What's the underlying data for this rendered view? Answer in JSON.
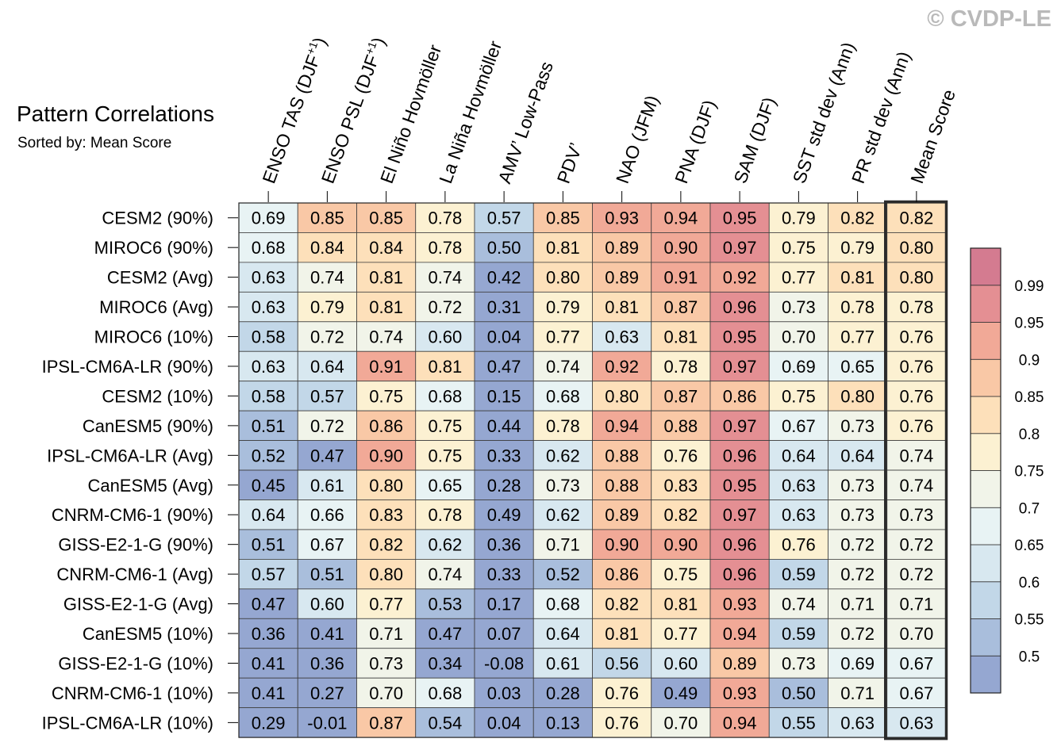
{
  "watermark": "© CVDP-LE",
  "title": "Pattern Correlations",
  "subtitle": "Sorted by: Mean Score",
  "chart_data": {
    "type": "heatmap",
    "columns": [
      {
        "label": "ENSO TAS (DJF",
        "sup": "+1",
        "tail": ")"
      },
      {
        "label": "ENSO PSL (DJF",
        "sup": "+1",
        "tail": ")"
      },
      {
        "label": "El Niño Hovmöller",
        "sup": "",
        "tail": ""
      },
      {
        "label": "La Niña Hovmöller",
        "sup": "",
        "tail": ""
      },
      {
        "label": "AMV’ Low-Pass",
        "sup": "",
        "tail": ""
      },
      {
        "label": "PDV’",
        "sup": "",
        "tail": ""
      },
      {
        "label": "NAO (JFM)",
        "sup": "",
        "tail": ""
      },
      {
        "label": "PNA (DJF)",
        "sup": "",
        "tail": ""
      },
      {
        "label": "SAM (DJF)",
        "sup": "",
        "tail": ""
      },
      {
        "label": "SST std dev (Ann)",
        "sup": "",
        "tail": ""
      },
      {
        "label": "PR std dev (Ann)",
        "sup": "",
        "tail": ""
      },
      {
        "label": "Mean Score",
        "sup": "",
        "tail": ""
      }
    ],
    "rows": [
      "CESM2 (90%)",
      "MIROC6 (90%)",
      "CESM2 (Avg)",
      "MIROC6 (Avg)",
      "MIROC6 (10%)",
      "IPSL-CM6A-LR (90%)",
      "CESM2 (10%)",
      "CanESM5 (90%)",
      "IPSL-CM6A-LR (Avg)",
      "CanESM5 (Avg)",
      "CNRM-CM6-1 (90%)",
      "GISS-E2-1-G (90%)",
      "CNRM-CM6-1 (Avg)",
      "GISS-E2-1-G (Avg)",
      "CanESM5 (10%)",
      "GISS-E2-1-G (10%)",
      "CNRM-CM6-1 (10%)",
      "IPSL-CM6A-LR (10%)"
    ],
    "values": [
      [
        "0.69",
        "0.85",
        "0.85",
        "0.78",
        "0.57",
        "0.85",
        "0.93",
        "0.94",
        "0.95",
        "0.79",
        "0.82",
        "0.82"
      ],
      [
        "0.68",
        "0.84",
        "0.84",
        "0.78",
        "0.50",
        "0.81",
        "0.89",
        "0.90",
        "0.97",
        "0.75",
        "0.79",
        "0.80"
      ],
      [
        "0.63",
        "0.74",
        "0.81",
        "0.74",
        "0.42",
        "0.80",
        "0.89",
        "0.91",
        "0.92",
        "0.77",
        "0.81",
        "0.80"
      ],
      [
        "0.63",
        "0.79",
        "0.81",
        "0.72",
        "0.31",
        "0.79",
        "0.81",
        "0.87",
        "0.96",
        "0.73",
        "0.78",
        "0.78"
      ],
      [
        "0.58",
        "0.72",
        "0.74",
        "0.60",
        "0.04",
        "0.77",
        "0.63",
        "0.81",
        "0.95",
        "0.70",
        "0.77",
        "0.76"
      ],
      [
        "0.63",
        "0.64",
        "0.91",
        "0.81",
        "0.47",
        "0.74",
        "0.92",
        "0.78",
        "0.97",
        "0.69",
        "0.65",
        "0.76"
      ],
      [
        "0.58",
        "0.57",
        "0.75",
        "0.68",
        "0.15",
        "0.68",
        "0.80",
        "0.87",
        "0.86",
        "0.75",
        "0.80",
        "0.76"
      ],
      [
        "0.51",
        "0.72",
        "0.86",
        "0.75",
        "0.44",
        "0.78",
        "0.94",
        "0.88",
        "0.97",
        "0.67",
        "0.73",
        "0.76"
      ],
      [
        "0.52",
        "0.47",
        "0.90",
        "0.75",
        "0.33",
        "0.62",
        "0.88",
        "0.76",
        "0.96",
        "0.64",
        "0.64",
        "0.74"
      ],
      [
        "0.45",
        "0.61",
        "0.80",
        "0.65",
        "0.28",
        "0.73",
        "0.88",
        "0.83",
        "0.95",
        "0.63",
        "0.73",
        "0.74"
      ],
      [
        "0.64",
        "0.66",
        "0.83",
        "0.78",
        "0.49",
        "0.62",
        "0.89",
        "0.82",
        "0.97",
        "0.63",
        "0.73",
        "0.73"
      ],
      [
        "0.51",
        "0.67",
        "0.82",
        "0.62",
        "0.36",
        "0.71",
        "0.90",
        "0.90",
        "0.96",
        "0.76",
        "0.72",
        "0.72"
      ],
      [
        "0.57",
        "0.51",
        "0.80",
        "0.74",
        "0.33",
        "0.52",
        "0.86",
        "0.75",
        "0.96",
        "0.59",
        "0.72",
        "0.72"
      ],
      [
        "0.47",
        "0.60",
        "0.77",
        "0.53",
        "0.17",
        "0.68",
        "0.82",
        "0.81",
        "0.93",
        "0.74",
        "0.71",
        "0.71"
      ],
      [
        "0.36",
        "0.41",
        "0.71",
        "0.47",
        "0.07",
        "0.64",
        "0.81",
        "0.77",
        "0.94",
        "0.59",
        "0.72",
        "0.70"
      ],
      [
        "0.41",
        "0.36",
        "0.73",
        "0.34",
        "-0.08",
        "0.61",
        "0.56",
        "0.60",
        "0.89",
        "0.73",
        "0.69",
        "0.67"
      ],
      [
        "0.41",
        "0.27",
        "0.70",
        "0.68",
        "0.03",
        "0.28",
        "0.76",
        "0.49",
        "0.93",
        "0.50",
        "0.71",
        "0.67"
      ],
      [
        "0.29",
        "-0.01",
        "0.87",
        "0.54",
        "0.04",
        "0.13",
        "0.76",
        "0.70",
        "0.94",
        "0.55",
        "0.63",
        "0.63"
      ]
    ],
    "highlight_column": "Mean Score",
    "colorbar": {
      "levels": [
        "0.5",
        "0.55",
        "0.6",
        "0.65",
        "0.7",
        "0.75",
        "0.8",
        "0.85",
        "0.9",
        "0.95",
        "0.99"
      ],
      "colors": [
        "#95a7d1",
        "#a9bedc",
        "#c2d7e8",
        "#d8e8f0",
        "#e8f3f4",
        "#f1f4e9",
        "#fcf1d2",
        "#fde0ba",
        "#f9c8a6",
        "#f1a997",
        "#e48f93",
        "#d47b90"
      ]
    }
  }
}
